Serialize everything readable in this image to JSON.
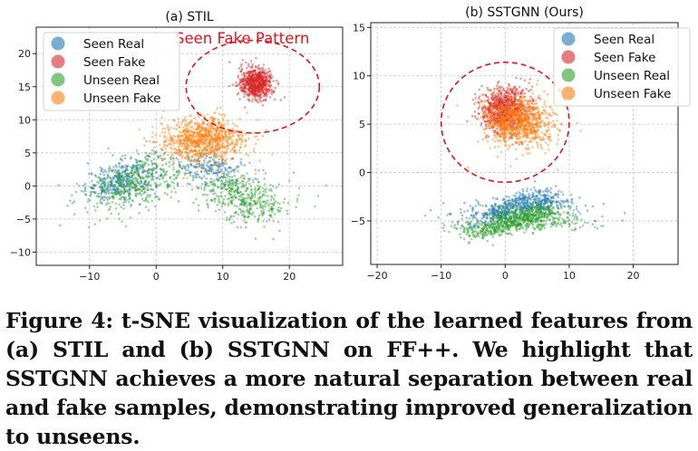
{
  "chart_data": [
    {
      "type": "scatter",
      "title": "(a) STIL",
      "xlim": [
        -18,
        28
      ],
      "ylim": [
        -12,
        24
      ],
      "xticks": [
        -10,
        0,
        10,
        20
      ],
      "yticks": [
        -10,
        -5,
        0,
        5,
        10,
        15,
        20
      ],
      "grid": true,
      "legend_position": "upper-left",
      "annotation": {
        "text": "Seen Fake Pattern",
        "color": "#d62728",
        "ellipse_center": [
          14.5,
          15
        ],
        "ellipse_radii": [
          10,
          7
        ]
      },
      "series": [
        {
          "name": "Seen Real",
          "color": "#1f77b4",
          "clusters": [
            {
              "center": [
                -5,
                1
              ],
              "spread": [
                5,
                2.5
              ],
              "n": 350
            },
            {
              "center": [
                8,
                2
              ],
              "spread": [
                5,
                2.5
              ],
              "n": 200
            }
          ]
        },
        {
          "name": "Seen Fake",
          "color": "#d62728",
          "clusters": [
            {
              "center": [
                15,
                15.5
              ],
              "spread": [
                2.3,
                2.2
              ],
              "n": 650
            }
          ]
        },
        {
          "name": "Unseen Real",
          "color": "#2ca02c",
          "clusters": [
            {
              "center": [
                -3,
                0
              ],
              "spread": [
                7,
                3.5
              ],
              "n": 450
            },
            {
              "center": [
                13,
                -1
              ],
              "spread": [
                6,
                3.5
              ],
              "n": 450
            }
          ]
        },
        {
          "name": "Unseen Fake",
          "color": "#ff7f0e",
          "clusters": [
            {
              "center": [
                7,
                7
              ],
              "spread": [
                6,
                3
              ],
              "n": 900
            }
          ]
        }
      ]
    },
    {
      "type": "scatter",
      "title": "(b) SSTGNN (Ours)",
      "xlim": [
        -21,
        27
      ],
      "ylim": [
        -9.5,
        15.5
      ],
      "xticks": [
        -20,
        -10,
        0,
        10,
        20
      ],
      "yticks": [
        -5,
        0,
        5,
        10,
        15
      ],
      "grid": true,
      "legend_position": "upper-right",
      "annotation": {
        "ellipse_center": [
          0,
          5.2
        ],
        "ellipse_radii": [
          10,
          6.2
        ]
      },
      "series": [
        {
          "name": "Seen Real",
          "color": "#1f77b4",
          "clusters": [
            {
              "center": [
                2,
                -3.8
              ],
              "spread": [
                8,
                1.2
              ],
              "n": 650
            }
          ]
        },
        {
          "name": "Seen Fake",
          "color": "#d62728",
          "clusters": [
            {
              "center": [
                0,
                6.5
              ],
              "spread": [
                3.5,
                2.2
              ],
              "n": 800
            }
          ]
        },
        {
          "name": "Unseen Real",
          "color": "#2ca02c",
          "clusters": [
            {
              "center": [
                2,
                -5.2
              ],
              "spread": [
                8,
                1.2
              ],
              "n": 800
            }
          ]
        },
        {
          "name": "Unseen Fake",
          "color": "#ff7f0e",
          "clusters": [
            {
              "center": [
                2,
                5.2
              ],
              "spread": [
                5,
                2.3
              ],
              "n": 900
            }
          ]
        }
      ]
    }
  ],
  "caption": "Figure 4: t-SNE visualization of the learned features from (a) STIL and (b) SSTGNN on FF++. We highlight that SSTGNN achieves a more natural separation between real and fake samples, demonstrating improved generalization to unseens."
}
